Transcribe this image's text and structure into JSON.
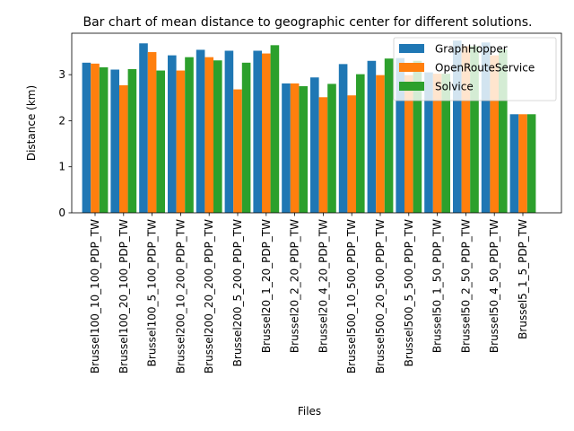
{
  "chart_data": {
    "type": "bar",
    "title": "Bar chart of mean distance to geographic center for different solutions.",
    "xlabel": "Files",
    "ylabel": "Distance (km)",
    "ylim": [
      0,
      3.9
    ],
    "yticks": [
      0,
      1,
      2,
      3
    ],
    "legend_position": "top-right",
    "grid": false,
    "categories": [
      "Brussel100_10_100_PDP_TW",
      "Brussel100_20_100_PDP_TW",
      "Brussel100_5_100_PDP_TW",
      "Brussel200_10_200_PDP_TW",
      "Brussel200_20_200_PDP_TW",
      "Brussel200_5_200_PDP_TW",
      "Brussel20_1_20_PDP_TW",
      "Brussel20_2_20_PDP_TW",
      "Brussel20_4_20_PDP_TW",
      "Brussel500_10_500_PDP_TW",
      "Brussel500_20_500_PDP_TW",
      "Brussel500_5_500_PDP_TW",
      "Brussel50_1_50_PDP_TW",
      "Brussel50_2_50_PDP_TW",
      "Brussel50_4_50_PDP_TW",
      "Brussel5_1_5_PDP_TW"
    ],
    "series": [
      {
        "name": "GraphHopper",
        "color": "#1f77b4",
        "values": [
          3.26,
          3.11,
          3.68,
          3.42,
          3.54,
          3.52,
          3.52,
          2.81,
          2.94,
          3.23,
          3.3,
          3.36,
          3.05,
          3.74,
          3.7,
          2.14
        ]
      },
      {
        "name": "OpenRouteService",
        "color": "#ff7f0e",
        "values": [
          3.24,
          2.77,
          3.49,
          3.09,
          3.38,
          2.68,
          3.46,
          2.81,
          2.51,
          2.55,
          2.99,
          2.99,
          3.02,
          3.62,
          3.42,
          2.14
        ]
      },
      {
        "name": "Solvice",
        "color": "#2ca02c",
        "values": [
          3.16,
          3.12,
          3.09,
          3.38,
          3.31,
          3.26,
          3.64,
          2.75,
          2.8,
          3.01,
          3.35,
          3.3,
          3.02,
          3.62,
          3.55,
          2.14
        ]
      }
    ]
  }
}
